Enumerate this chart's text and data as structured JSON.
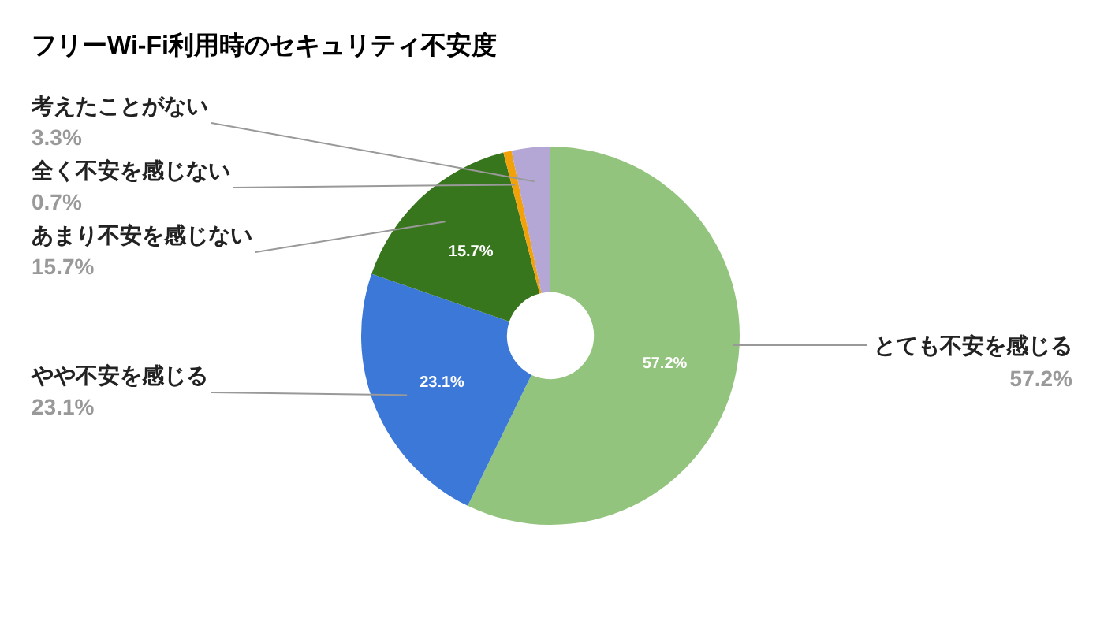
{
  "chart_data": {
    "type": "donut",
    "title": "フリーWi-Fi利用時のセキュリティ不安度",
    "categories": [
      "とても不安を感じる",
      "やや不安を感じる",
      "あまり不安を感じない",
      "全く不安を感じない",
      "考えたことがない"
    ],
    "values": [
      57.2,
      23.1,
      15.7,
      0.7,
      3.3
    ],
    "colors": [
      "#93c47d",
      "#3c78d8",
      "#38761d",
      "#f1a10a",
      "#b4a7d6"
    ],
    "value_labels": [
      "57.2%",
      "23.1%",
      "15.7%",
      "0.7%",
      "3.3%"
    ]
  }
}
